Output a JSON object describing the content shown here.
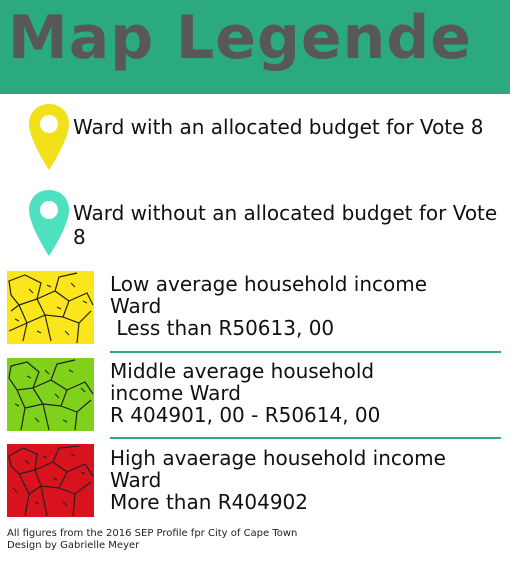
{
  "title": "Map Legende",
  "colors": {
    "header_bg": "#2aaa7d",
    "title_text": "#585858",
    "pin_allocated": "#f2e01a",
    "pin_unallocated": "#4fe0bf",
    "tier_low": "#fae61a",
    "tier_middle": "#7fd11b",
    "tier_high": "#d8131e",
    "divider": "#2aaa7d"
  },
  "pins": [
    {
      "icon": "yellow-map-pin",
      "label": "Ward with an allocated budget for Vote 8"
    },
    {
      "icon": "turquoise-map-pin",
      "label": "Ward without an allocated budget for Vote 8"
    }
  ],
  "tiers": [
    {
      "line1": "Low average household income",
      "line2": "Ward",
      "line3": " Less than R50613, 00"
    },
    {
      "line1": "Middle average household",
      "line2": "income Ward",
      "line3": "R 404901, 00 - R50614, 00"
    },
    {
      "line1": "High avaerage household income",
      "line2": "Ward",
      "line3": "More than R404902"
    }
  ],
  "footer": {
    "line1": "All figures from the 2016 SEP Profile fpr City of Cape Town",
    "line2": "Design by Gabrielle Meyer"
  }
}
